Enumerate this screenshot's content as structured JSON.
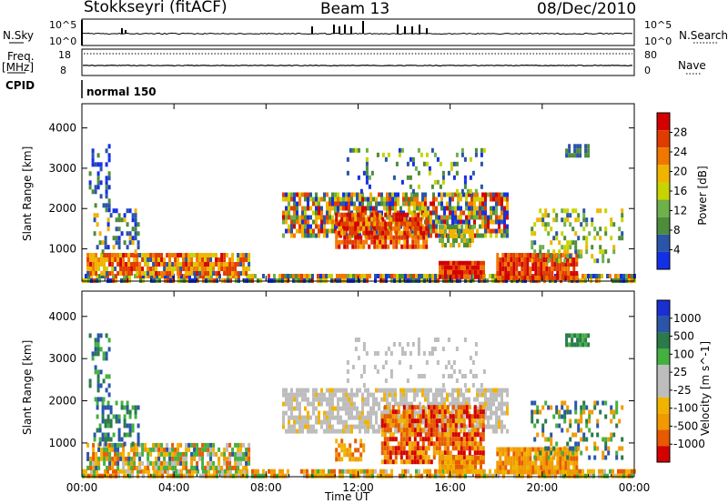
{
  "header": {
    "station": "Stokkseyri (fitACF)",
    "beam": "Beam 13",
    "date": "08/Dec/2010"
  },
  "top_panels": {
    "nsky_label": "N.Sky",
    "nsky_ticks": [
      "10^5",
      "10^0"
    ],
    "nsearch_label": "N.Search",
    "nsearch_ticks": [
      "10^5",
      "10^0"
    ],
    "freq_label": "Freq.",
    "freq_unit": "[MHz]",
    "freq_ticks": [
      "18",
      "8"
    ],
    "nave_label": "Nave",
    "nave_ticks": [
      "80",
      "0"
    ],
    "cpid_label": "CPID",
    "cpid_value": "normal 150"
  },
  "colors": {
    "power": [
      "#1430e6",
      "#2a55a8",
      "#4d8c3a",
      "#6fb04a",
      "#c8d400",
      "#f0b400",
      "#f07800",
      "#e03c00",
      "#d40000"
    ],
    "velocity": [
      "#d40000",
      "#e85a00",
      "#f09a00",
      "#f0b400",
      "#bdbdbd",
      "#bdbdbd",
      "#44b040",
      "#2a7a4a",
      "#2a55a8",
      "#1a2fd0"
    ]
  },
  "chart_data": [
    {
      "type": "heatmap",
      "name": "power",
      "xlabel": "",
      "ylabel": "Slant Range [km]",
      "x_ticks": [
        "00:00",
        "04:00",
        "08:00",
        "12:00",
        "16:00",
        "20:00",
        "00:00"
      ],
      "y_ticks": [
        "1000",
        "2000",
        "3000",
        "4000"
      ],
      "ylim": [
        200,
        4600
      ],
      "colorbar_label": "Power [dB]",
      "colorbar_ticks": [
        "28",
        "24",
        "20",
        "16",
        "12",
        "8",
        "4"
      ],
      "colorbar_range": [
        0,
        32
      ]
    },
    {
      "type": "heatmap",
      "name": "velocity",
      "xlabel": "Time UT",
      "ylabel": "Slant Range [km]",
      "x_ticks": [
        "00:00",
        "04:00",
        "08:00",
        "12:00",
        "16:00",
        "20:00",
        "00:00"
      ],
      "y_ticks": [
        "1000",
        "2000",
        "3000",
        "4000"
      ],
      "ylim": [
        200,
        4600
      ],
      "colorbar_label": "Velocity [m s^-1]",
      "colorbar_ticks": [
        "1000",
        "500",
        "100",
        "25",
        "-25",
        "-100",
        "-500",
        "-1000"
      ]
    }
  ]
}
